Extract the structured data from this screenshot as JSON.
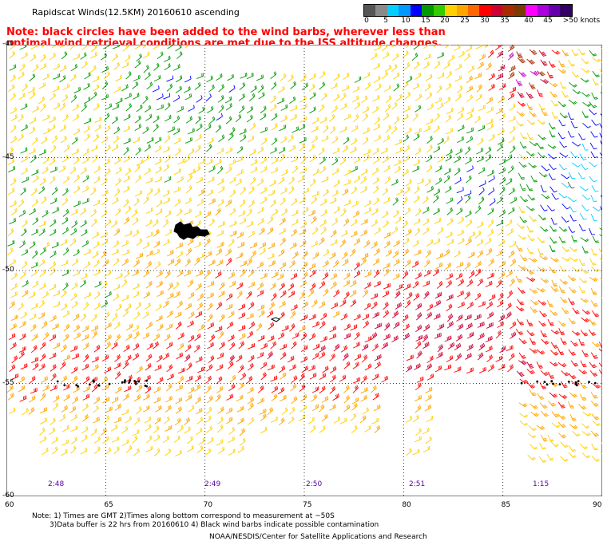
{
  "title": "Rapidscat Winds(12.5KM) 20160610 ascending",
  "note": "Note: black circles have been added to the wind barbs, wherever less than optimal wind retrieval conditions are met due to the ISS altitude changes.",
  "legend": {
    "labels": [
      "0",
      "5",
      "10",
      "15",
      "20",
      "25",
      "30",
      "35",
      "40",
      "45",
      ">50 knots"
    ],
    "colors": [
      "#555555",
      "#8a8a8a",
      "#00cfff",
      "#0099ff",
      "#0000ff",
      "#009900",
      "#33cc00",
      "#ffd000",
      "#ffa500",
      "#ff6600",
      "#ff0000",
      "#cc0033",
      "#aa2a00",
      "#7a3a00",
      "#ff00ff",
      "#aa00dd",
      "#6600aa",
      "#330066"
    ]
  },
  "lat_labels": [
    "-40",
    "-45",
    "-50",
    "-55",
    "-60"
  ],
  "lon_labels": [
    "60",
    "65",
    "70",
    "75",
    "80",
    "85",
    "90"
  ],
  "times": [
    "2:48",
    "2:49",
    "2:50",
    "2:51",
    "1:15"
  ],
  "footer": {
    "line1": "Note: 1) Times are GMT 2)Times along bottom correspond to measurement at ~50S",
    "line2": "3)Data buffer is 22 hrs from 20160610 4) Black wind barbs indicate possible contamination",
    "line3": "NOAA/NESDIS/Center for Satellite Applications and Research"
  }
}
